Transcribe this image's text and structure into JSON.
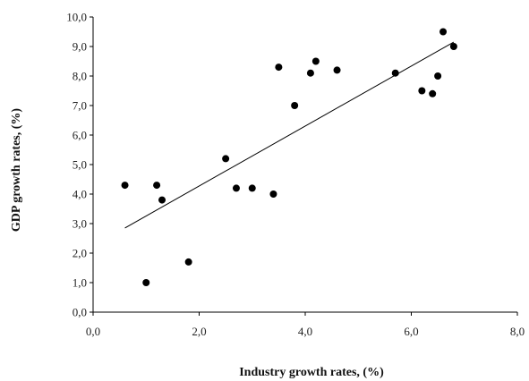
{
  "chart_data": {
    "type": "scatter",
    "title": "",
    "xlabel": "Industry growth rates, (%)",
    "ylabel": "GDP growth rates, (%)",
    "xlim": [
      0,
      8
    ],
    "ylim": [
      0,
      10
    ],
    "x_ticks": [
      "0,0",
      "2,0",
      "4,0",
      "6,0",
      "8,0"
    ],
    "y_ticks": [
      "0,0",
      "1,0",
      "2,0",
      "3,0",
      "4,0",
      "5,0",
      "6,0",
      "7,0",
      "8,0",
      "9,0",
      "10,0"
    ],
    "grid": false,
    "legend": "none",
    "colors": {
      "points": "#000000",
      "trendline": "#000000",
      "axis": "#000000"
    },
    "series": [
      {
        "points": [
          {
            "x": 0.6,
            "y": 4.3
          },
          {
            "x": 1.0,
            "y": 1.0
          },
          {
            "x": 1.2,
            "y": 4.3
          },
          {
            "x": 1.3,
            "y": 3.8
          },
          {
            "x": 1.8,
            "y": 1.7
          },
          {
            "x": 2.5,
            "y": 5.2
          },
          {
            "x": 2.7,
            "y": 4.2
          },
          {
            "x": 3.0,
            "y": 4.2
          },
          {
            "x": 3.4,
            "y": 4.0
          },
          {
            "x": 3.5,
            "y": 8.3
          },
          {
            "x": 3.8,
            "y": 7.0
          },
          {
            "x": 4.1,
            "y": 8.1
          },
          {
            "x": 4.2,
            "y": 8.5
          },
          {
            "x": 4.6,
            "y": 8.2
          },
          {
            "x": 5.7,
            "y": 8.1
          },
          {
            "x": 6.2,
            "y": 7.5
          },
          {
            "x": 6.4,
            "y": 7.4
          },
          {
            "x": 6.5,
            "y": 8.0
          },
          {
            "x": 6.6,
            "y": 9.5
          },
          {
            "x": 6.8,
            "y": 9.0
          }
        ]
      }
    ],
    "trendline": {
      "type": "linear",
      "x_range": [
        0.6,
        6.8
      ],
      "y_values": [
        2.85,
        9.15
      ]
    }
  }
}
